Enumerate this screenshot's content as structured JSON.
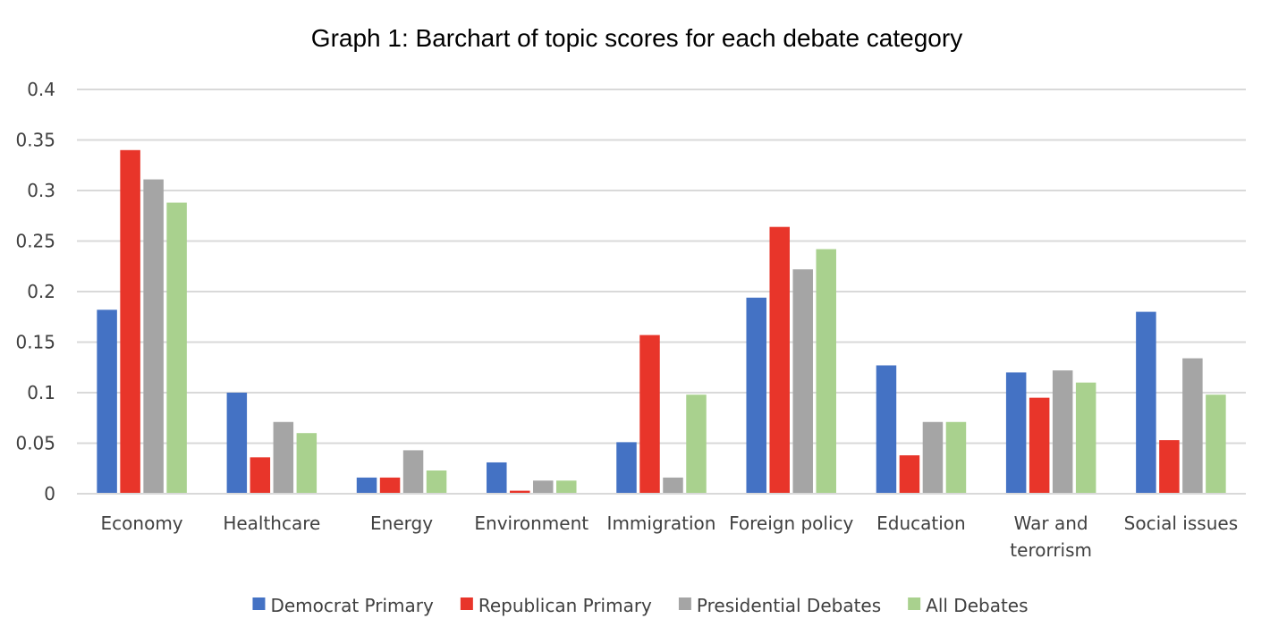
{
  "chart_data": {
    "type": "bar",
    "title": "Graph 1: Barchart of topic scores for each debate category",
    "xlabel": "",
    "ylabel": "",
    "ylim": [
      0,
      0.4
    ],
    "yticks": [
      "0",
      "0.05",
      "0.1",
      "0.15",
      "0.2",
      "0.25",
      "0.3",
      "0.35",
      "0.4"
    ],
    "grid": true,
    "legend_position": "bottom",
    "categories": [
      [
        "Economy"
      ],
      [
        "Healthcare"
      ],
      [
        "Energy"
      ],
      [
        "Environment"
      ],
      [
        "Immigration"
      ],
      [
        "Foreign  policy"
      ],
      [
        "Education"
      ],
      [
        "War and",
        "terorrism"
      ],
      [
        "Social issues"
      ]
    ],
    "series": [
      {
        "name": "Democrat Primary",
        "color": "#4472c4",
        "values": [
          0.182,
          0.1,
          0.016,
          0.031,
          0.051,
          0.194,
          0.127,
          0.12,
          0.18
        ]
      },
      {
        "name": "Republican Primary",
        "color": "#e8352a",
        "values": [
          0.34,
          0.036,
          0.016,
          0.003,
          0.157,
          0.264,
          0.038,
          0.095,
          0.053
        ]
      },
      {
        "name": "Presidential Debates",
        "color": "#a5a5a5",
        "values": [
          0.311,
          0.071,
          0.043,
          0.013,
          0.016,
          0.222,
          0.071,
          0.122,
          0.134
        ]
      },
      {
        "name": "All Debates",
        "color": "#a9d18e",
        "values": [
          0.288,
          0.06,
          0.023,
          0.013,
          0.098,
          0.242,
          0.071,
          0.11,
          0.098
        ]
      }
    ]
  }
}
